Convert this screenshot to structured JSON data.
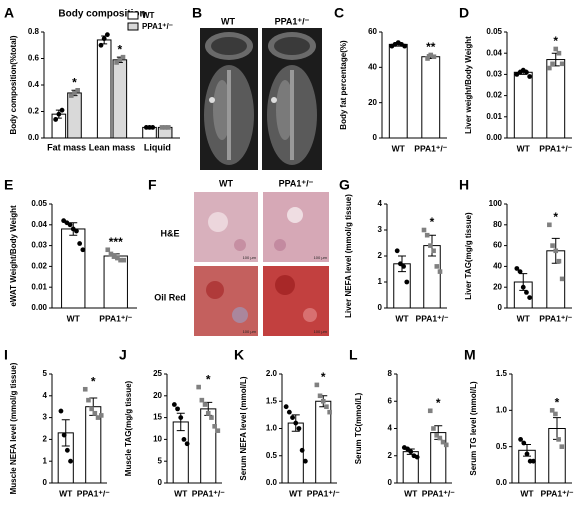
{
  "chart_data": [
    {
      "panel": "A",
      "type": "bar",
      "title": "Body composition",
      "ylabel": "Body composition(%total)",
      "categories": [
        "Fat mass",
        "Lean mass",
        "Liquid"
      ],
      "series": [
        {
          "name": "WT",
          "color": "#ffffff",
          "point_color": "#000000",
          "values": [
            0.18,
            0.74,
            0.08
          ],
          "errors": [
            0.03,
            0.03,
            0.005
          ],
          "points": [
            [
              0.14,
              0.18,
              0.21
            ],
            [
              0.7,
              0.75,
              0.78
            ],
            [
              0.08,
              0.08,
              0.08
            ]
          ],
          "significance": [
            null,
            null,
            null
          ]
        },
        {
          "name": "PPA1⁺/⁻",
          "color": "#d9d9d9",
          "point_color": "#808080",
          "values": [
            0.34,
            0.59,
            0.08
          ],
          "errors": [
            0.02,
            0.02,
            0.005
          ],
          "points": [
            [
              0.32,
              0.34,
              0.36
            ],
            [
              0.57,
              0.59,
              0.61
            ],
            [
              0.08,
              0.08,
              0.08
            ]
          ],
          "significance": [
            "*",
            "*",
            null
          ]
        }
      ],
      "ylim": [
        0,
        0.8
      ],
      "yticks": [
        {
          "value": 0,
          "label": "0.0"
        },
        0.2,
        0.4,
        0.6,
        0.8
      ]
    },
    {
      "panel": "C",
      "type": "bar",
      "ylabel": "Body fat percentage(%)",
      "categories": [
        "WT",
        "PPA1⁺/⁻"
      ],
      "color": "#ffffff",
      "point_colors": [
        "#000000",
        "#808080"
      ],
      "values": [
        53,
        46
      ],
      "errors": [
        1,
        1
      ],
      "points": [
        [
          52,
          53,
          54,
          53,
          52
        ],
        [
          45,
          47,
          46
        ]
      ],
      "significance": "**",
      "ylim": [
        0,
        60
      ],
      "yticks": [
        0,
        20,
        40,
        60
      ]
    },
    {
      "panel": "D",
      "type": "bar",
      "ylabel": "Liver weight/Body Weight",
      "categories": [
        "WT",
        "PPA1⁺/⁻"
      ],
      "color": "#ffffff",
      "point_colors": [
        "#000000",
        "#808080"
      ],
      "values": [
        0.031,
        0.037
      ],
      "errors": [
        0.001,
        0.003
      ],
      "points": [
        [
          0.03,
          0.031,
          0.032,
          0.031,
          0.029
        ],
        [
          0.033,
          0.035,
          0.042,
          0.04,
          0.035
        ]
      ],
      "significance": "*",
      "ylim": [
        0,
        0.05
      ],
      "yticks": [
        {
          "value": 0,
          "label": "0.00"
        },
        0.01,
        0.02,
        0.03,
        0.04,
        0.05
      ]
    },
    {
      "panel": "E",
      "type": "bar",
      "ylabel": "eWAT Weight/Body Weight",
      "categories": [
        "WT",
        "PPA1⁺/⁻"
      ],
      "color": "#ffffff",
      "point_colors": [
        "#000000",
        "#808080"
      ],
      "values": [
        0.038,
        0.025
      ],
      "errors": [
        0.003,
        0.001
      ],
      "points": [
        [
          0.042,
          0.041,
          0.04,
          0.038,
          0.037,
          0.031,
          0.028
        ],
        [
          0.028,
          0.026,
          0.025,
          0.024,
          0.023,
          0.023
        ]
      ],
      "significance": "***",
      "ylim": [
        0,
        0.05
      ],
      "yticks": [
        {
          "value": 0,
          "label": "0.00"
        },
        0.01,
        0.02,
        0.03,
        0.04,
        0.05
      ]
    },
    {
      "panel": "G",
      "type": "bar",
      "ylabel": "Liver NEFA level (mmol/g tissue)",
      "categories": [
        "WT",
        "PPA1⁺/⁻"
      ],
      "color": "#ffffff",
      "point_colors": [
        "#000000",
        "#808080"
      ],
      "values": [
        1.7,
        2.4
      ],
      "errors": [
        0.3,
        0.4
      ],
      "points": [
        [
          2.2,
          1.7,
          1.6,
          1.0
        ],
        [
          3.0,
          2.8,
          2.4,
          2.2,
          1.6,
          1.4
        ]
      ],
      "significance": "*",
      "ylim": [
        0,
        4
      ],
      "yticks": [
        0,
        1,
        2,
        3,
        4
      ]
    },
    {
      "panel": "H",
      "type": "bar",
      "ylabel": "Liver TAG(mg/g tissue)",
      "categories": [
        "WT",
        "PPA1⁺/⁻"
      ],
      "color": "#ffffff",
      "point_colors": [
        "#000000",
        "#808080"
      ],
      "values": [
        25,
        55
      ],
      "errors": [
        8,
        12
      ],
      "points": [
        [
          38,
          35,
          20,
          15,
          10
        ],
        [
          80,
          60,
          55,
          45,
          28
        ]
      ],
      "significance": "*",
      "ylim": [
        0,
        100
      ],
      "yticks": [
        0,
        20,
        40,
        60,
        80,
        100
      ]
    },
    {
      "panel": "I",
      "type": "bar",
      "ylabel": "Muscle NEFA level (mmol/g tissue)",
      "categories": [
        "WT",
        "PPA1⁺/⁻"
      ],
      "color": "#ffffff",
      "point_colors": [
        "#000000",
        "#808080"
      ],
      "values": [
        2.3,
        3.5
      ],
      "errors": [
        0.6,
        0.4
      ],
      "points": [
        [
          3.3,
          2.2,
          1.5,
          1.0
        ],
        [
          4.3,
          3.8,
          3.4,
          3.2,
          3.0,
          3.1
        ]
      ],
      "significance": "*",
      "ylim": [
        0,
        5
      ],
      "yticks": [
        0,
        1,
        2,
        3,
        4,
        5
      ]
    },
    {
      "panel": "J",
      "type": "bar",
      "ylabel": "Muscle TAG(mg/g tissue)",
      "categories": [
        "WT",
        "PPA1⁺/⁻"
      ],
      "color": "#ffffff",
      "point_colors": [
        "#000000",
        "#808080"
      ],
      "values": [
        14,
        17
      ],
      "errors": [
        2,
        1.5
      ],
      "points": [
        [
          18,
          17,
          15,
          10,
          9
        ],
        [
          22,
          19,
          18,
          16,
          15,
          13,
          12
        ]
      ],
      "significance": "*",
      "ylim": [
        0,
        25
      ],
      "yticks": [
        0,
        5,
        10,
        15,
        20,
        25
      ]
    },
    {
      "panel": "K",
      "type": "bar",
      "ylabel": "Serum NEFA level (mmol/L)",
      "categories": [
        "WT",
        "PPA1⁺/⁻"
      ],
      "color": "#ffffff",
      "point_colors": [
        "#000000",
        "#808080"
      ],
      "values": [
        1.1,
        1.5
      ],
      "errors": [
        0.15,
        0.1
      ],
      "points": [
        [
          1.4,
          1.3,
          1.2,
          1.1,
          1.0,
          0.6,
          0.4
        ],
        [
          1.8,
          1.6,
          1.5,
          1.4,
          1.3
        ]
      ],
      "significance": "*",
      "ylim": [
        0,
        2
      ],
      "yticks": [
        {
          "value": 0,
          "label": "0.0"
        },
        0.5,
        {
          "value": 1,
          "label": "1.0"
        },
        1.5,
        {
          "value": 2,
          "label": "2.0"
        }
      ]
    },
    {
      "panel": "L",
      "type": "bar",
      "ylabel": "Serum TC(mmol/L)",
      "categories": [
        "WT",
        "PPA1⁺/⁻"
      ],
      "color": "#ffffff",
      "point_colors": [
        "#000000",
        "#808080"
      ],
      "values": [
        2.3,
        3.7
      ],
      "errors": [
        0.2,
        0.5
      ],
      "points": [
        [
          2.6,
          2.5,
          2.3,
          2.0,
          1.9
        ],
        [
          5.3,
          4.0,
          3.5,
          3.3,
          3.0,
          2.8
        ]
      ],
      "significance": "*",
      "ylim": [
        0,
        8
      ],
      "yticks": [
        0,
        2,
        4,
        6,
        8
      ]
    },
    {
      "panel": "M",
      "type": "bar",
      "ylabel": "Serum TG level (mmol/L)",
      "categories": [
        "WT",
        "PPA1⁺/⁻"
      ],
      "color": "#ffffff",
      "point_colors": [
        "#000000",
        "#808080"
      ],
      "values": [
        0.45,
        0.75
      ],
      "errors": [
        0.08,
        0.15
      ],
      "points": [
        [
          0.6,
          0.55,
          0.4,
          0.3,
          0.3
        ],
        [
          1.0,
          0.95,
          0.6,
          0.5
        ]
      ],
      "significance": "*",
      "ylim": [
        0,
        1.5
      ],
      "yticks": [
        {
          "value": 0,
          "label": "0.0"
        },
        0.5,
        {
          "value": 1,
          "label": "1.0"
        },
        1.5
      ]
    }
  ],
  "image_panels": {
    "B": {
      "panel": "B",
      "columns": [
        "WT",
        "PPA1⁺/⁻"
      ]
    },
    "F": {
      "panel": "F",
      "columns": [
        "WT",
        "PPA1⁺/⁻"
      ],
      "rows": [
        "H&E",
        "Oil Red"
      ],
      "scale": "100 μm"
    }
  }
}
